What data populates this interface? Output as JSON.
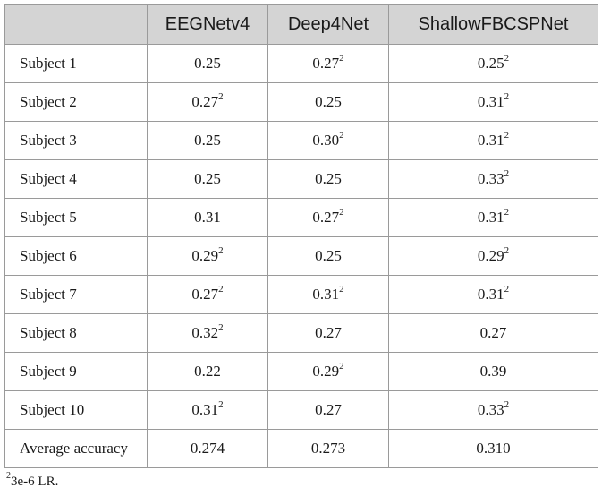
{
  "table": {
    "columns": [
      "",
      "EEGNetv4",
      "Deep4Net",
      "ShallowFBCSPNet"
    ],
    "rows": [
      {
        "label": "Subject 1",
        "cells": [
          {
            "v": "0.25",
            "sup": ""
          },
          {
            "v": "0.27",
            "sup": "2"
          },
          {
            "v": "0.25",
            "sup": "2"
          }
        ]
      },
      {
        "label": "Subject 2",
        "cells": [
          {
            "v": "0.27",
            "sup": "2"
          },
          {
            "v": "0.25",
            "sup": ""
          },
          {
            "v": "0.31",
            "sup": "2"
          }
        ]
      },
      {
        "label": "Subject 3",
        "cells": [
          {
            "v": "0.25",
            "sup": ""
          },
          {
            "v": "0.30",
            "sup": "2"
          },
          {
            "v": "0.31",
            "sup": "2"
          }
        ]
      },
      {
        "label": "Subject 4",
        "cells": [
          {
            "v": "0.25",
            "sup": ""
          },
          {
            "v": "0.25",
            "sup": ""
          },
          {
            "v": "0.33",
            "sup": "2"
          }
        ]
      },
      {
        "label": "Subject 5",
        "cells": [
          {
            "v": "0.31",
            "sup": ""
          },
          {
            "v": "0.27",
            "sup": "2"
          },
          {
            "v": "0.31",
            "sup": "2"
          }
        ]
      },
      {
        "label": "Subject 6",
        "cells": [
          {
            "v": "0.29",
            "sup": "2"
          },
          {
            "v": "0.25",
            "sup": ""
          },
          {
            "v": "0.29",
            "sup": "2"
          }
        ]
      },
      {
        "label": "Subject 7",
        "cells": [
          {
            "v": "0.27",
            "sup": "2"
          },
          {
            "v": "0.31",
            "sup": "2"
          },
          {
            "v": "0.31",
            "sup": "2"
          }
        ]
      },
      {
        "label": "Subject 8",
        "cells": [
          {
            "v": "0.32",
            "sup": "2"
          },
          {
            "v": "0.27",
            "sup": ""
          },
          {
            "v": "0.27",
            "sup": ""
          }
        ]
      },
      {
        "label": "Subject 9",
        "cells": [
          {
            "v": "0.22",
            "sup": ""
          },
          {
            "v": "0.29",
            "sup": "2"
          },
          {
            "v": "0.39",
            "sup": ""
          }
        ]
      },
      {
        "label": "Subject 10",
        "cells": [
          {
            "v": "0.31",
            "sup": "2"
          },
          {
            "v": "0.27",
            "sup": ""
          },
          {
            "v": "0.33",
            "sup": "2"
          }
        ]
      },
      {
        "label": "Average accuracy",
        "cells": [
          {
            "v": "0.274",
            "sup": ""
          },
          {
            "v": "0.273",
            "sup": ""
          },
          {
            "v": "0.310",
            "sup": ""
          }
        ]
      }
    ]
  },
  "footnote": {
    "marker": "2",
    "text": "3e-6 LR."
  }
}
